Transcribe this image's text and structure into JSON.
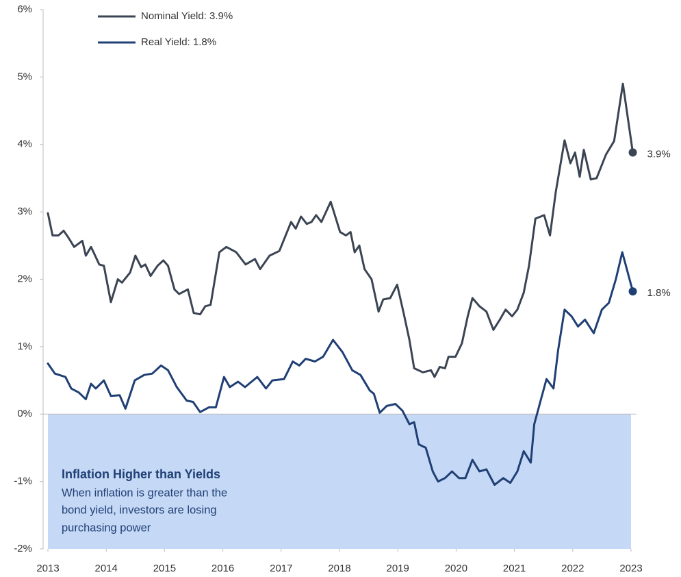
{
  "chart_data": {
    "type": "line",
    "xlim": [
      2013,
      2023
    ],
    "xticks": [
      2013,
      2014,
      2015,
      2016,
      2017,
      2018,
      2019,
      2020,
      2021,
      2022,
      2023
    ],
    "ylim": [
      -2,
      6
    ],
    "yticks": [
      {
        "value": -2,
        "label": "-2%"
      },
      {
        "value": -1,
        "label": "-1%"
      },
      {
        "value": 0,
        "label": "0%"
      },
      {
        "value": 1,
        "label": "1%"
      },
      {
        "value": 2,
        "label": "2%"
      },
      {
        "value": 3,
        "label": "3%"
      },
      {
        "value": 4,
        "label": "4%"
      },
      {
        "value": 5,
        "label": "5%"
      },
      {
        "value": 6,
        "label": "6%"
      }
    ],
    "legend": "upper left",
    "shaded_region": {
      "from": 0,
      "to": -2,
      "color": "#c5d8f5"
    },
    "annotation": {
      "title": "Inflation Higher than Yields",
      "lines": [
        "When inflation is greater than the",
        "bond yield, investors are losing",
        "purchasing power"
      ]
    },
    "series": [
      {
        "name": "Nominal Yield:  3.9%",
        "color": "#3b4453",
        "end_label": "3.9%",
        "x": [
          2013.0,
          2013.08,
          2013.18,
          2013.27,
          2013.35,
          2013.45,
          2013.59,
          2013.65,
          2013.74,
          2013.88,
          2013.96,
          2014.08,
          2014.2,
          2014.27,
          2014.41,
          2014.5,
          2014.6,
          2014.67,
          2014.76,
          2014.88,
          2014.98,
          2015.06,
          2015.17,
          2015.25,
          2015.4,
          2015.5,
          2015.61,
          2015.7,
          2015.79,
          2015.94,
          2016.06,
          2016.23,
          2016.39,
          2016.55,
          2016.64,
          2016.8,
          2016.97,
          2017.17,
          2017.25,
          2017.34,
          2017.44,
          2017.52,
          2017.6,
          2017.69,
          2017.85,
          2018.01,
          2018.11,
          2018.19,
          2018.26,
          2018.34,
          2018.43,
          2018.55,
          2018.67,
          2018.75,
          2018.87,
          2018.99,
          2019.1,
          2019.2,
          2019.28,
          2019.43,
          2019.57,
          2019.63,
          2019.72,
          2019.81,
          2019.87,
          2019.99,
          2020.1,
          2020.2,
          2020.28,
          2020.4,
          2020.52,
          2020.64,
          2020.75,
          2020.85,
          2020.96,
          2021.05,
          2021.16,
          2021.25,
          2021.36,
          2021.51,
          2021.61,
          2021.71,
          2021.86,
          2021.96,
          2022.04,
          2022.12,
          2022.19,
          2022.31,
          2022.41,
          2022.57,
          2022.71,
          2022.86,
          2023.03
        ],
        "values": [
          2.98,
          2.65,
          2.65,
          2.72,
          2.62,
          2.48,
          2.57,
          2.35,
          2.48,
          2.22,
          2.2,
          1.66,
          2.0,
          1.95,
          2.1,
          2.35,
          2.18,
          2.22,
          2.05,
          2.2,
          2.28,
          2.2,
          1.85,
          1.78,
          1.85,
          1.5,
          1.48,
          1.6,
          1.62,
          2.4,
          2.48,
          2.4,
          2.22,
          2.3,
          2.15,
          2.35,
          2.42,
          2.85,
          2.75,
          2.93,
          2.82,
          2.85,
          2.95,
          2.85,
          3.15,
          2.7,
          2.65,
          2.7,
          2.4,
          2.5,
          2.15,
          2.0,
          1.52,
          1.7,
          1.72,
          1.92,
          1.5,
          1.1,
          0.68,
          0.62,
          0.65,
          0.55,
          0.7,
          0.68,
          0.85,
          0.85,
          1.05,
          1.45,
          1.72,
          1.6,
          1.52,
          1.25,
          1.4,
          1.55,
          1.45,
          1.55,
          1.8,
          2.2,
          2.9,
          2.95,
          2.65,
          3.3,
          4.06,
          3.72,
          3.88,
          3.52,
          3.92,
          3.48,
          3.5,
          3.85,
          4.05,
          4.9,
          3.88
        ]
      },
      {
        "name": "Real Yield:  1.8%",
        "color": "#1f3f75",
        "end_label": "1.8%",
        "x": [
          2013.0,
          2013.12,
          2013.3,
          2013.4,
          2013.53,
          2013.65,
          2013.74,
          2013.82,
          2013.96,
          2014.08,
          2014.23,
          2014.33,
          2014.49,
          2014.65,
          2014.79,
          2014.94,
          2015.06,
          2015.21,
          2015.38,
          2015.49,
          2015.61,
          2015.76,
          2015.88,
          2016.02,
          2016.12,
          2016.26,
          2016.38,
          2016.59,
          2016.74,
          2016.85,
          2017.05,
          2017.2,
          2017.31,
          2017.42,
          2017.58,
          2017.72,
          2017.89,
          2018.05,
          2018.22,
          2018.36,
          2018.52,
          2018.59,
          2018.69,
          2018.81,
          2018.96,
          2019.08,
          2019.2,
          2019.28,
          2019.36,
          2019.48,
          2019.6,
          2019.69,
          2019.81,
          2019.93,
          2020.05,
          2020.16,
          2020.28,
          2020.4,
          2020.52,
          2020.66,
          2020.81,
          2020.93,
          2021.05,
          2021.16,
          2021.28,
          2021.34,
          2021.45,
          2021.55,
          2021.67,
          2021.75,
          2021.86,
          2021.98,
          2022.09,
          2022.21,
          2022.36,
          2022.5,
          2022.62,
          2022.74,
          2022.85,
          2023.03
        ],
        "values": [
          0.75,
          0.6,
          0.55,
          0.38,
          0.32,
          0.22,
          0.45,
          0.38,
          0.5,
          0.27,
          0.28,
          0.08,
          0.5,
          0.58,
          0.6,
          0.72,
          0.65,
          0.4,
          0.2,
          0.18,
          0.03,
          0.1,
          0.1,
          0.55,
          0.4,
          0.48,
          0.4,
          0.55,
          0.38,
          0.5,
          0.52,
          0.78,
          0.72,
          0.82,
          0.78,
          0.85,
          1.1,
          0.92,
          0.65,
          0.58,
          0.35,
          0.3,
          0.02,
          0.12,
          0.15,
          0.05,
          -0.15,
          -0.12,
          -0.45,
          -0.5,
          -0.85,
          -1.0,
          -0.95,
          -0.85,
          -0.95,
          -0.95,
          -0.68,
          -0.85,
          -0.82,
          -1.05,
          -0.95,
          -1.02,
          -0.85,
          -0.55,
          -0.72,
          -0.15,
          0.2,
          0.52,
          0.38,
          0.95,
          1.55,
          1.45,
          1.3,
          1.4,
          1.2,
          1.55,
          1.65,
          2.0,
          2.4,
          1.82
        ]
      }
    ]
  }
}
